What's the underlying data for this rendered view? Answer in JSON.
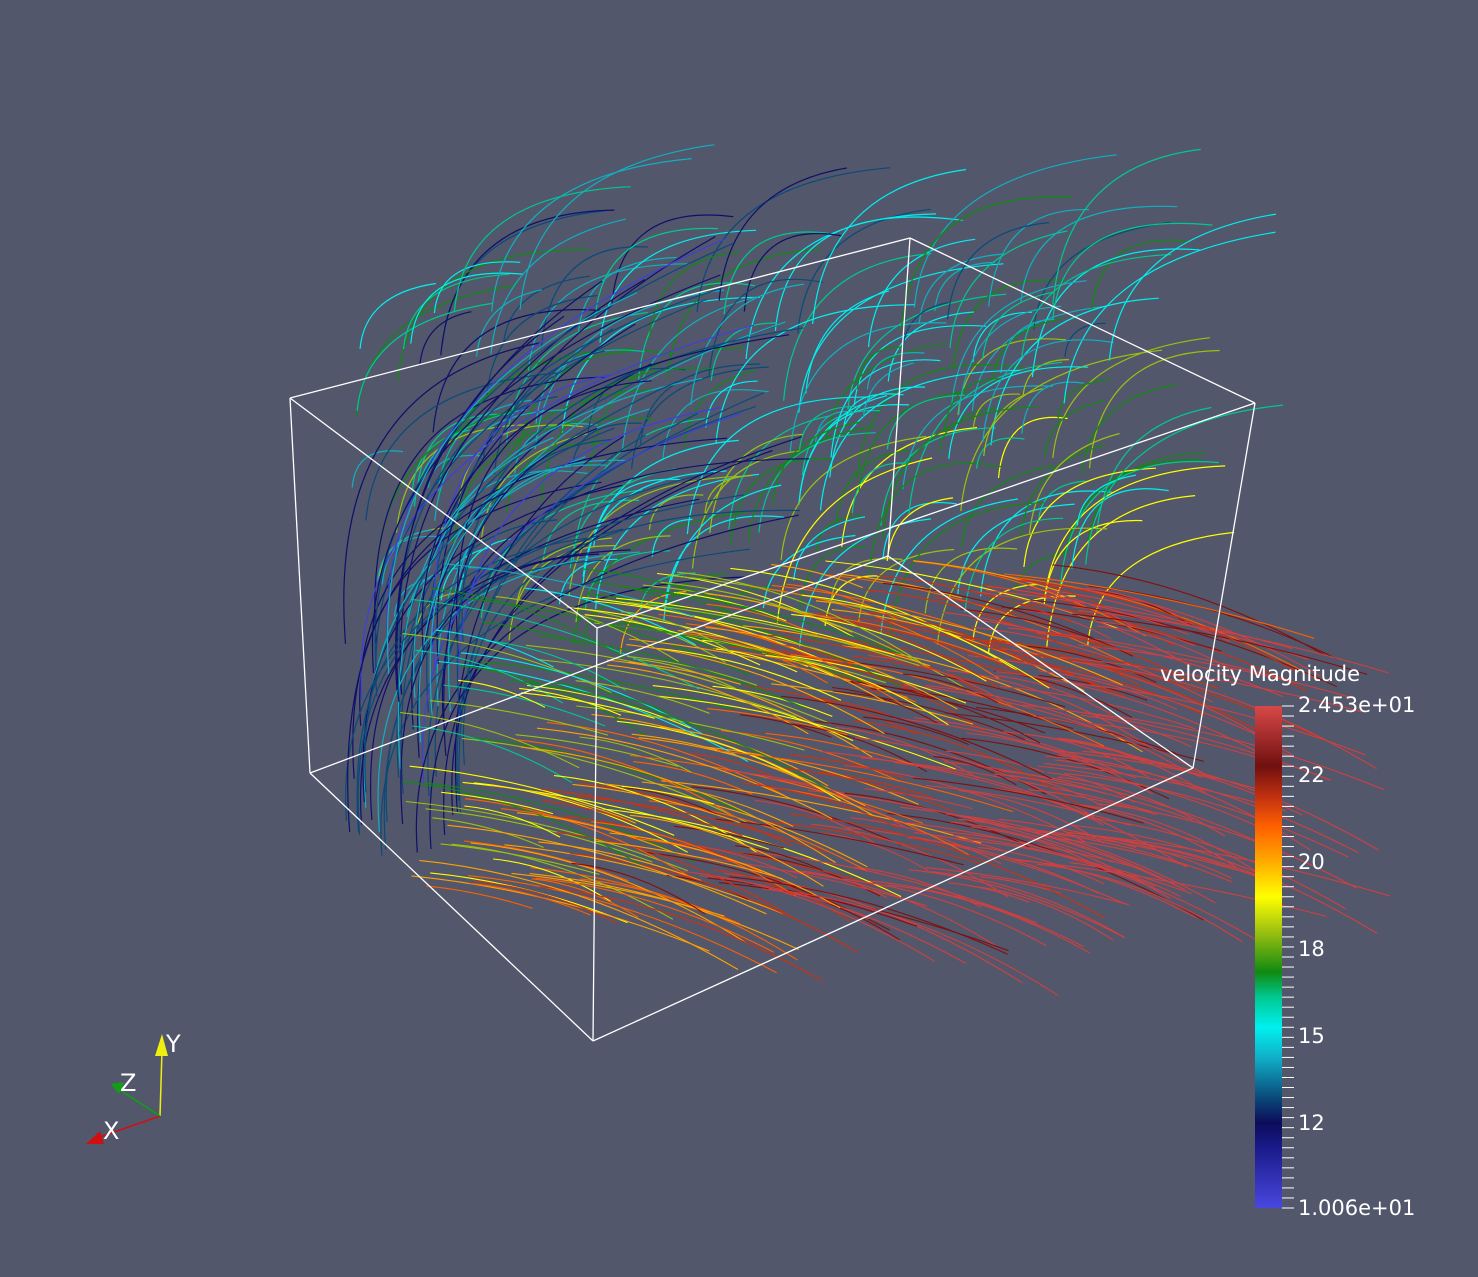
{
  "scene": {
    "background_color": "#52576b",
    "outline_color": "#ffffff"
  },
  "colorbar": {
    "title": "velocity Magnitude",
    "min_value": 10.06,
    "max_value": 24.53,
    "max_label": "2.453e+01",
    "min_label": "1.006e+01",
    "tick_labels": [
      "22",
      "20",
      "18",
      "15",
      "12"
    ],
    "tick_values": [
      22,
      20,
      18,
      15,
      12
    ],
    "colormap": [
      "#4040d8",
      "#10106a",
      "#0a4a7a",
      "#10b0c0",
      "#00f0f0",
      "#00c890",
      "#108a10",
      "#9cc010",
      "#ffff00",
      "#ffa000",
      "#ff6000",
      "#d03010",
      "#801010",
      "#d04040"
    ]
  },
  "axes_triad": {
    "x_label": "X",
    "y_label": "Y",
    "z_label": "Z",
    "x_color": "#d01010",
    "y_color": "#f0f010",
    "z_color": "#10a010"
  }
}
